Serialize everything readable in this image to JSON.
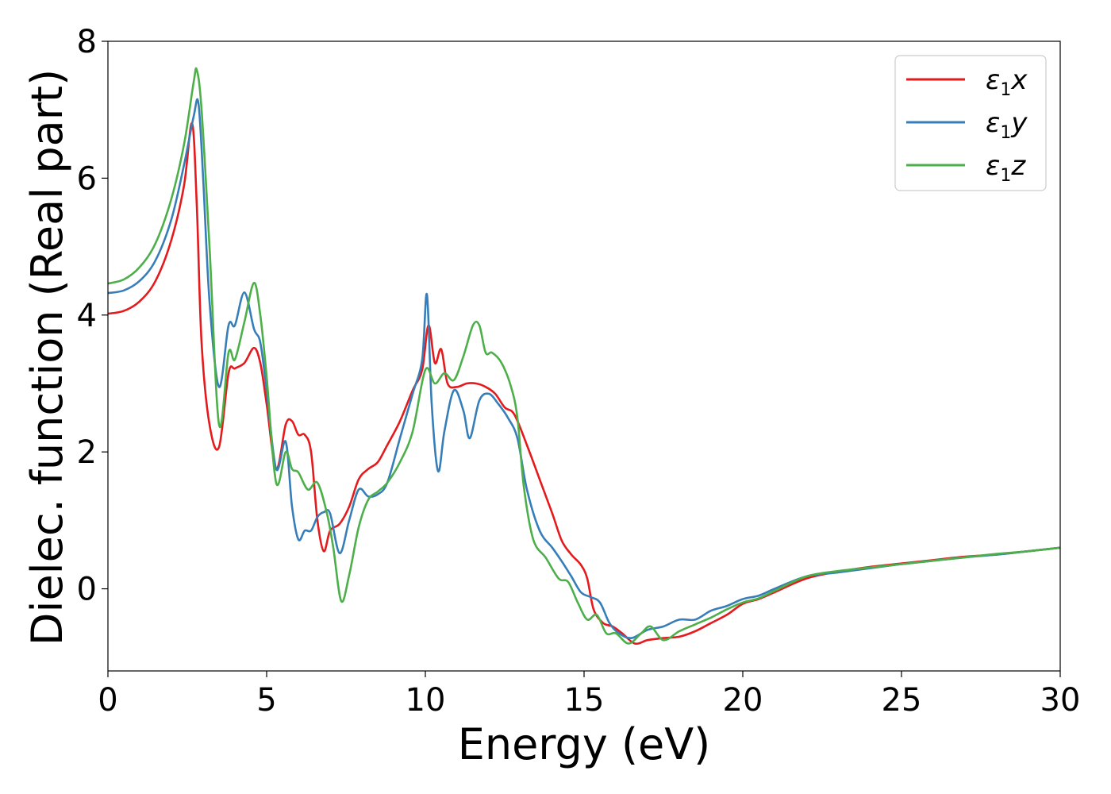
{
  "chart_data": {
    "type": "line",
    "xlabel": "Energy (eV)",
    "ylabel": "Dielec. function (Real part)",
    "xlim": [
      0,
      30
    ],
    "ylim": [
      -1.2,
      8
    ],
    "xticks": [
      0,
      5,
      10,
      15,
      20,
      25,
      30
    ],
    "yticks": [
      0,
      2,
      4,
      6,
      8
    ],
    "grid": false,
    "legend": "top-right",
    "series": [
      {
        "name": "ε1x",
        "name_parts": {
          "base": "ε",
          "sub": "1",
          "var": "x"
        },
        "color": "#e41a1c",
        "x": [
          0,
          0.5,
          1.0,
          1.5,
          2.0,
          2.4,
          2.65,
          2.8,
          2.95,
          3.2,
          3.5,
          3.8,
          4.0,
          4.3,
          4.6,
          4.8,
          5.0,
          5.3,
          5.6,
          5.8,
          6.0,
          6.2,
          6.4,
          6.6,
          6.8,
          7.0,
          7.3,
          7.6,
          7.9,
          8.2,
          8.5,
          8.8,
          9.2,
          9.6,
          9.9,
          10.1,
          10.3,
          10.5,
          10.7,
          11.0,
          11.3,
          11.6,
          11.9,
          12.2,
          12.5,
          12.8,
          13.2,
          13.6,
          14.0,
          14.3,
          14.6,
          14.9,
          15.1,
          15.3,
          15.6,
          15.9,
          16.2,
          16.6,
          17.0,
          17.5,
          18.0,
          18.5,
          19.0,
          19.5,
          20.0,
          20.5,
          21.0,
          22.0,
          23.0,
          24.0,
          25.0,
          26.0,
          27.0,
          28.0,
          29.0,
          30.0
        ],
        "y": [
          4.02,
          4.06,
          4.2,
          4.5,
          5.1,
          5.9,
          6.8,
          5.6,
          3.6,
          2.4,
          2.07,
          3.15,
          3.22,
          3.3,
          3.52,
          3.3,
          2.7,
          1.75,
          2.4,
          2.45,
          2.25,
          2.25,
          2.0,
          1.0,
          0.55,
          0.85,
          0.95,
          1.2,
          1.6,
          1.75,
          1.85,
          2.1,
          2.45,
          2.9,
          3.2,
          3.85,
          3.3,
          3.5,
          3.0,
          2.95,
          3.0,
          3.0,
          2.95,
          2.85,
          2.65,
          2.55,
          2.1,
          1.6,
          1.1,
          0.7,
          0.5,
          0.35,
          0.15,
          -0.3,
          -0.5,
          -0.55,
          -0.65,
          -0.8,
          -0.75,
          -0.72,
          -0.7,
          -0.62,
          -0.5,
          -0.38,
          -0.22,
          -0.15,
          -0.05,
          0.15,
          0.25,
          0.32,
          0.37,
          0.42,
          0.47,
          0.5,
          0.55,
          0.6
        ]
      },
      {
        "name": "ε1y",
        "name_parts": {
          "base": "ε",
          "sub": "1",
          "var": "y"
        },
        "color": "#377eb8",
        "x": [
          0,
          0.5,
          1.0,
          1.5,
          2.0,
          2.4,
          2.7,
          2.85,
          3.0,
          3.2,
          3.5,
          3.8,
          4.0,
          4.3,
          4.6,
          4.8,
          5.0,
          5.3,
          5.6,
          5.8,
          6.0,
          6.2,
          6.4,
          6.6,
          6.8,
          7.0,
          7.3,
          7.6,
          7.9,
          8.2,
          8.5,
          8.8,
          9.2,
          9.6,
          9.9,
          10.05,
          10.2,
          10.4,
          10.6,
          10.9,
          11.2,
          11.4,
          11.7,
          12.0,
          12.3,
          12.6,
          12.9,
          13.2,
          13.6,
          14.0,
          14.3,
          14.6,
          14.9,
          15.2,
          15.5,
          15.8,
          16.1,
          16.5,
          17.0,
          17.5,
          18.0,
          18.5,
          19.0,
          19.5,
          20.0,
          20.5,
          21.0,
          22.0,
          23.0,
          24.0,
          25.0,
          26.0,
          27.0,
          28.0,
          29.0,
          30.0
        ],
        "y": [
          4.32,
          4.36,
          4.5,
          4.8,
          5.4,
          6.2,
          6.9,
          7.1,
          6.0,
          4.2,
          2.95,
          3.85,
          3.85,
          4.33,
          3.8,
          3.6,
          2.9,
          1.75,
          2.15,
          1.2,
          0.72,
          0.85,
          0.85,
          1.05,
          1.12,
          1.1,
          0.52,
          1.0,
          1.45,
          1.35,
          1.38,
          1.55,
          2.2,
          2.85,
          3.35,
          4.3,
          2.7,
          1.72,
          2.3,
          2.9,
          2.6,
          2.2,
          2.75,
          2.85,
          2.7,
          2.5,
          2.2,
          1.45,
          0.85,
          0.6,
          0.4,
          0.18,
          -0.05,
          -0.12,
          -0.2,
          -0.5,
          -0.65,
          -0.72,
          -0.6,
          -0.55,
          -0.45,
          -0.45,
          -0.32,
          -0.25,
          -0.15,
          -0.1,
          0.0,
          0.18,
          0.24,
          0.3,
          0.36,
          0.41,
          0.46,
          0.5,
          0.55,
          0.6
        ]
      },
      {
        "name": "ε1z",
        "name_parts": {
          "base": "ε",
          "sub": "1",
          "var": "z"
        },
        "color": "#4daf4a",
        "x": [
          0,
          0.5,
          1.0,
          1.5,
          2.0,
          2.4,
          2.7,
          2.8,
          2.95,
          3.2,
          3.5,
          3.8,
          4.0,
          4.3,
          4.6,
          4.8,
          5.0,
          5.3,
          5.6,
          5.8,
          6.0,
          6.3,
          6.6,
          6.9,
          7.1,
          7.35,
          7.6,
          7.9,
          8.2,
          8.5,
          8.8,
          9.2,
          9.6,
          10.0,
          10.3,
          10.6,
          10.9,
          11.2,
          11.5,
          11.7,
          11.9,
          12.1,
          12.4,
          12.7,
          12.9,
          13.1,
          13.4,
          13.8,
          14.2,
          14.5,
          14.8,
          15.1,
          15.4,
          15.7,
          16.0,
          16.4,
          16.8,
          17.1,
          17.5,
          18.0,
          18.5,
          19.0,
          19.5,
          20.0,
          20.5,
          21.0,
          22.0,
          23.0,
          24.0,
          25.0,
          26.0,
          27.0,
          28.0,
          29.0,
          30.0
        ],
        "y": [
          4.46,
          4.52,
          4.7,
          5.05,
          5.7,
          6.5,
          7.4,
          7.58,
          7.0,
          5.0,
          2.4,
          3.45,
          3.35,
          3.9,
          4.47,
          4.0,
          3.1,
          1.55,
          2.0,
          1.75,
          1.7,
          1.45,
          1.55,
          1.1,
          0.6,
          -0.18,
          0.2,
          0.9,
          1.3,
          1.42,
          1.55,
          1.85,
          2.3,
          3.2,
          3.0,
          3.15,
          3.05,
          3.4,
          3.85,
          3.85,
          3.45,
          3.45,
          3.3,
          2.95,
          2.5,
          1.5,
          0.72,
          0.45,
          0.15,
          0.1,
          -0.2,
          -0.45,
          -0.38,
          -0.65,
          -0.65,
          -0.8,
          -0.65,
          -0.55,
          -0.75,
          -0.62,
          -0.52,
          -0.42,
          -0.3,
          -0.2,
          -0.14,
          -0.03,
          0.18,
          0.26,
          0.31,
          0.36,
          0.41,
          0.46,
          0.51,
          0.55,
          0.6
        ]
      }
    ]
  }
}
